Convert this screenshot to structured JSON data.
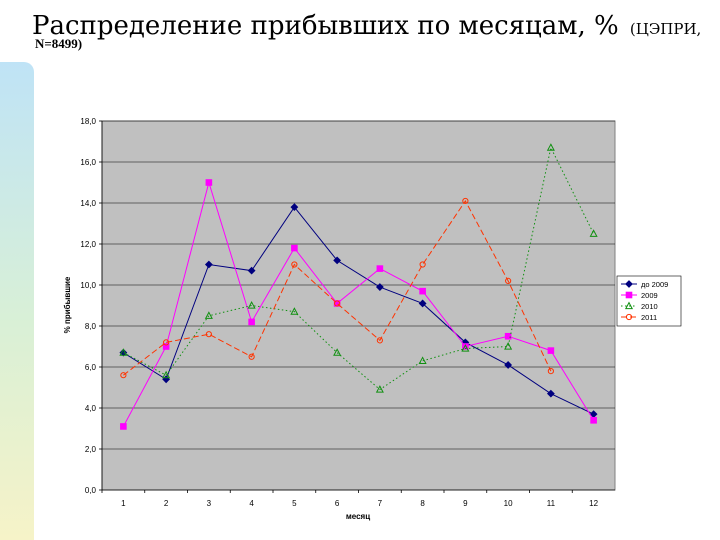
{
  "slide": {
    "title": "Распределение прибывших по месяцам, %",
    "title_suffix": "(ЦЭПРИ,",
    "subtitle": "N=8499)"
  },
  "colors": {
    "plot_background": "#c0c0c0",
    "gridline": "#000000",
    "side_gradient_top": "#bfe3f6",
    "side_gradient_bottom": "#f6f3c8"
  },
  "chart_data": {
    "type": "line",
    "xlabel": "месяц",
    "ylabel": "% прибывшие",
    "ylim": [
      0,
      18
    ],
    "y_ticks": [
      "0,0",
      "2,0",
      "4,0",
      "6,0",
      "8,0",
      "10,0",
      "12,0",
      "14,0",
      "16,0",
      "18,0"
    ],
    "categories": [
      "1",
      "2",
      "3",
      "4",
      "5",
      "6",
      "7",
      "8",
      "9",
      "10",
      "11",
      "12"
    ],
    "grid": true,
    "legend_position": "right",
    "series": [
      {
        "name": "до 2009",
        "color": "#00007f",
        "marker": "diamond",
        "dash": "solid",
        "values": [
          6.7,
          5.4,
          11.0,
          10.7,
          13.8,
          11.2,
          9.9,
          9.1,
          7.2,
          6.1,
          4.7,
          3.7
        ]
      },
      {
        "name": "2009",
        "color": "#ff00ff",
        "marker": "square",
        "dash": "solid",
        "values": [
          3.1,
          7.0,
          15.0,
          8.2,
          11.8,
          9.1,
          10.8,
          9.7,
          7.0,
          7.5,
          6.8,
          3.4
        ]
      },
      {
        "name": "2010",
        "color": "#109010",
        "marker": "triangle",
        "dash": "dotted",
        "values": [
          6.7,
          5.6,
          8.5,
          9.0,
          8.7,
          6.7,
          4.9,
          6.3,
          6.9,
          7.0,
          16.7,
          12.5
        ]
      },
      {
        "name": "2011",
        "color": "#ff3300",
        "marker": "circle",
        "dash": "dashed",
        "values": [
          5.6,
          7.2,
          7.6,
          6.5,
          11.0,
          9.1,
          7.3,
          11.0,
          14.1,
          10.2,
          5.8,
          null
        ]
      }
    ]
  }
}
